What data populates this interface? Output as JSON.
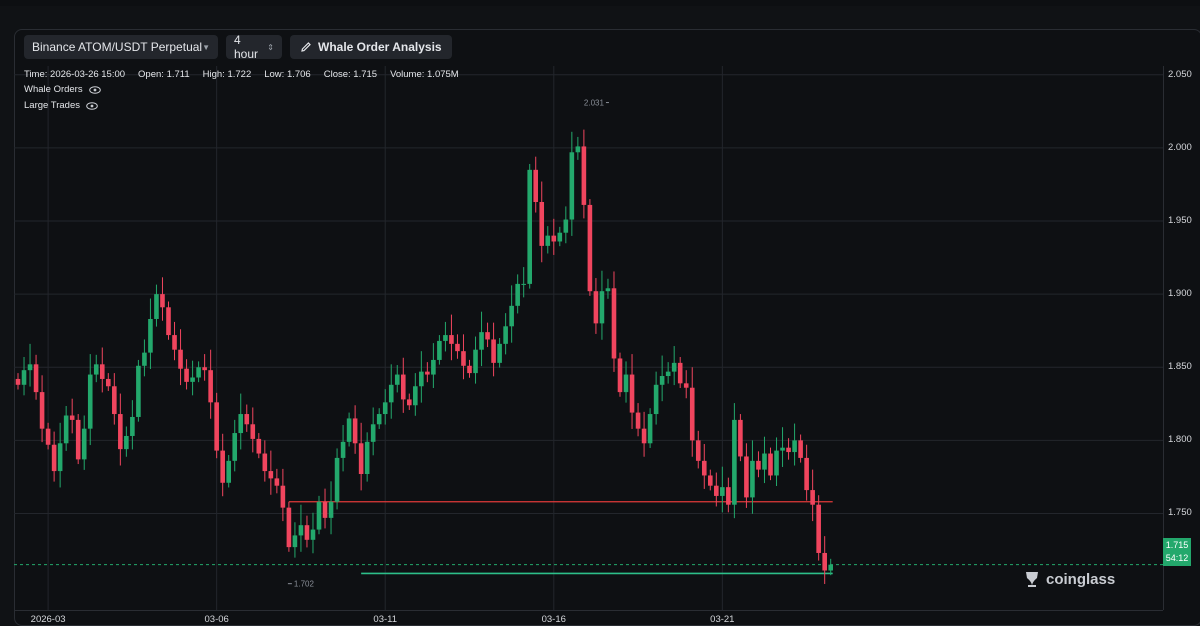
{
  "toolbar": {
    "pair_label": "Binance ATOM/USDT Perpetual",
    "interval_label": "4 hour",
    "whale_button_label": "Whale Order Analysis"
  },
  "info": {
    "time": "Time: 2026-03-26 15:00",
    "open": "Open: 1.711",
    "high": "High: 1.722",
    "low": "Low: 1.706",
    "close": "Close: 1.715",
    "volume": "Volume: 1.075M"
  },
  "legend": {
    "whale_orders": "Whale Orders",
    "large_trades": "Large Trades"
  },
  "price_tag": {
    "price": "1.715",
    "countdown": "54:12"
  },
  "watermark": "coinglass",
  "colors": {
    "up": "#23a86c",
    "down": "#f0455e",
    "grid": "#23262c",
    "whale_line": "#e03a3a",
    "trade_line": "#2dbf8a"
  },
  "chart_data": {
    "type": "candlestick",
    "x_ticks": [
      "2026-03",
      "03-06",
      "03-11",
      "03-16",
      "03-21"
    ],
    "y_ticks": [
      "2.050",
      "2.000",
      "1.950",
      "1.900",
      "1.850",
      "1.800",
      "1.750"
    ],
    "ylim": [
      1.684,
      2.056
    ],
    "annotations": {
      "high_label": "2.031",
      "low_label": "1.702"
    },
    "levels": [
      {
        "name": "whale-order-level",
        "price": 1.758
      },
      {
        "name": "large-trade-level",
        "price": 1.709
      }
    ],
    "closes": [
      1.838,
      1.848,
      1.852,
      1.833,
      1.808,
      1.797,
      1.779,
      1.798,
      1.817,
      1.814,
      1.787,
      1.808,
      1.845,
      1.852,
      1.842,
      1.837,
      1.818,
      1.794,
      1.803,
      1.816,
      1.851,
      1.86,
      1.883,
      1.9,
      1.891,
      1.872,
      1.862,
      1.849,
      1.84,
      1.843,
      1.85,
      1.848,
      1.826,
      1.793,
      1.771,
      1.786,
      1.805,
      1.818,
      1.811,
      1.801,
      1.791,
      1.779,
      1.774,
      1.769,
      1.754,
      1.727,
      1.735,
      1.742,
      1.732,
      1.739,
      1.758,
      1.747,
      1.758,
      1.788,
      1.799,
      1.815,
      1.798,
      1.777,
      1.799,
      1.811,
      1.818,
      1.826,
      1.838,
      1.845,
      1.828,
      1.824,
      1.837,
      1.847,
      1.845,
      1.855,
      1.868,
      1.872,
      1.866,
      1.861,
      1.851,
      1.846,
      1.862,
      1.874,
      1.869,
      1.853,
      1.866,
      1.878,
      1.892,
      1.907,
      1.907,
      1.985,
      1.963,
      1.933,
      1.94,
      1.936,
      1.942,
      1.951,
      1.997,
      2.001,
      1.961,
      1.902,
      1.88,
      1.902,
      1.904,
      1.856,
      1.833,
      1.845,
      1.819,
      1.808,
      1.798,
      1.818,
      1.838,
      1.844,
      1.847,
      1.853,
      1.839,
      1.836,
      1.8,
      1.786,
      1.776,
      1.769,
      1.762,
      1.768,
      1.756,
      1.814,
      1.789,
      1.761,
      1.786,
      1.78,
      1.791,
      1.776,
      1.793,
      1.795,
      1.792,
      1.8,
      1.788,
      1.766,
      1.756,
      1.723,
      1.711,
      1.715
    ]
  }
}
